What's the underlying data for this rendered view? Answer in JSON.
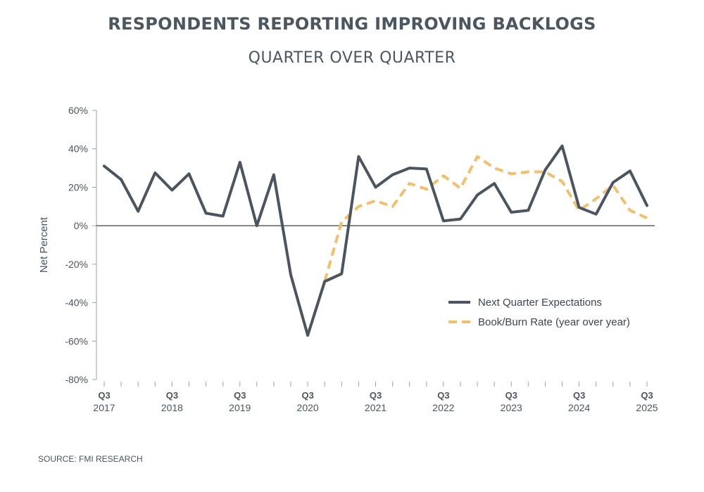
{
  "chart_data": {
    "type": "line",
    "title": "RESPONDENTS REPORTING IMPROVING BACKLOGS",
    "subtitle": "QUARTER OVER QUARTER",
    "ylabel": "Net Percent",
    "ylim": [
      -80,
      60
    ],
    "yticks": [
      -80,
      -60,
      -40,
      -20,
      0,
      20,
      40,
      60
    ],
    "ytick_labels": [
      "-80%",
      "-60%",
      "-40%",
      "-20%",
      "0%",
      "20%",
      "40%",
      "60%"
    ],
    "x": [
      "Q3 2017",
      "Q4 2017",
      "Q1 2018",
      "Q2 2018",
      "Q3 2018",
      "Q4 2018",
      "Q1 2019",
      "Q2 2019",
      "Q3 2019",
      "Q4 2019",
      "Q1 2020",
      "Q2 2020",
      "Q3 2020",
      "Q4 2020",
      "Q1 2021",
      "Q2 2021",
      "Q3 2021",
      "Q4 2021",
      "Q1 2022",
      "Q2 2022",
      "Q3 2022",
      "Q4 2022",
      "Q1 2023",
      "Q2 2023",
      "Q3 2023",
      "Q4 2023",
      "Q1 2024",
      "Q2 2024",
      "Q3 2024",
      "Q4 2024",
      "Q1 2025",
      "Q2 2025",
      "Q3 2025"
    ],
    "x_labels": [
      {
        "index": 0,
        "quarter": "Q3",
        "year": "2017"
      },
      {
        "index": 4,
        "quarter": "Q3",
        "year": "2018"
      },
      {
        "index": 8,
        "quarter": "Q3",
        "year": "2019"
      },
      {
        "index": 12,
        "quarter": "Q3",
        "year": "2020"
      },
      {
        "index": 16,
        "quarter": "Q3",
        "year": "2021"
      },
      {
        "index": 20,
        "quarter": "Q3",
        "year": "2022"
      },
      {
        "index": 24,
        "quarter": "Q3",
        "year": "2023"
      },
      {
        "index": 28,
        "quarter": "Q3",
        "year": "2024"
      },
      {
        "index": 32,
        "quarter": "Q3",
        "year": "2025"
      }
    ],
    "series": [
      {
        "name": "Next Quarter Expectations",
        "color": "#4a5560",
        "style": "solid",
        "values": [
          31,
          24,
          7.5,
          27.5,
          18.5,
          27,
          6.5,
          5,
          33,
          0,
          26.5,
          -25.5,
          -57,
          -29,
          -25,
          36,
          20,
          26.5,
          30,
          29.5,
          2.5,
          3.5,
          16,
          22,
          7,
          8,
          29,
          41.5,
          9.5,
          6,
          22.5,
          28.5,
          10.5
        ]
      },
      {
        "name": "Book/Burn Rate (year over year)",
        "color": "#f0c070",
        "style": "dashed",
        "values": [
          null,
          null,
          null,
          null,
          null,
          null,
          null,
          null,
          null,
          null,
          null,
          null,
          null,
          -29,
          2,
          10,
          13,
          10,
          22,
          19,
          26,
          19.5,
          36,
          30,
          27,
          28,
          28,
          23,
          8,
          14,
          21,
          8,
          4
        ]
      }
    ],
    "legend": "lower-right",
    "grid": false
  },
  "source": "SOURCE: FMI RESEARCH"
}
